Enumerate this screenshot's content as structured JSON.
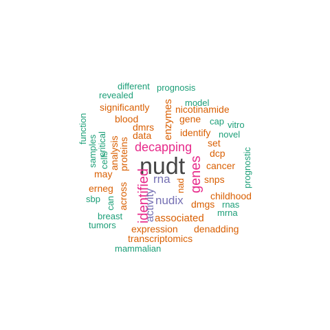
{
  "palette": {
    "teal": "#1b9e77",
    "orange": "#d95f02",
    "purple": "#7570b3",
    "magenta": "#e7298a",
    "gray": "#444444"
  },
  "words": [
    {
      "text": "nudt",
      "color": "gray",
      "rotated": false
    },
    {
      "text": "decapping",
      "color": "magenta",
      "rotated": false
    },
    {
      "text": "genes",
      "color": "magenta",
      "rotated": true
    },
    {
      "text": "identified",
      "color": "magenta",
      "rotated": true
    },
    {
      "text": "rna",
      "color": "purple",
      "rotated": false
    },
    {
      "text": "nudix",
      "color": "purple",
      "rotated": false
    },
    {
      "text": "activity",
      "color": "purple",
      "rotated": true
    },
    {
      "text": "associated",
      "color": "orange",
      "rotated": false
    },
    {
      "text": "expression",
      "color": "orange",
      "rotated": false
    },
    {
      "text": "denadding",
      "color": "orange",
      "rotated": false
    },
    {
      "text": "transcriptomics",
      "color": "orange",
      "rotated": false
    },
    {
      "text": "significantly",
      "color": "orange",
      "rotated": false
    },
    {
      "text": "nicotinamide",
      "color": "orange",
      "rotated": false
    },
    {
      "text": "blood",
      "color": "orange",
      "rotated": false
    },
    {
      "text": "dmrs",
      "color": "orange",
      "rotated": false
    },
    {
      "text": "data",
      "color": "orange",
      "rotated": false
    },
    {
      "text": "gene",
      "color": "orange",
      "rotated": false
    },
    {
      "text": "identify",
      "color": "orange",
      "rotated": false
    },
    {
      "text": "enzymes",
      "color": "orange",
      "rotated": true
    },
    {
      "text": "proteins",
      "color": "orange",
      "rotated": true
    },
    {
      "text": "analysis",
      "color": "orange",
      "rotated": true
    },
    {
      "text": "may",
      "color": "orange",
      "rotated": false
    },
    {
      "text": "erneg",
      "color": "orange",
      "rotated": false
    },
    {
      "text": "across",
      "color": "orange",
      "rotated": true
    },
    {
      "text": "dmgs",
      "color": "orange",
      "rotated": false
    },
    {
      "text": "snps",
      "color": "orange",
      "rotated": false
    },
    {
      "text": "cancer",
      "color": "orange",
      "rotated": false
    },
    {
      "text": "dcp",
      "color": "orange",
      "rotated": false
    },
    {
      "text": "set",
      "color": "orange",
      "rotated": false
    },
    {
      "text": "childhood",
      "color": "orange",
      "rotated": false
    },
    {
      "text": "nad",
      "color": "orange",
      "rotated": true
    },
    {
      "text": "different",
      "color": "teal",
      "rotated": false
    },
    {
      "text": "prognosis",
      "color": "teal",
      "rotated": false
    },
    {
      "text": "revealed",
      "color": "teal",
      "rotated": false
    },
    {
      "text": "model",
      "color": "teal",
      "rotated": false
    },
    {
      "text": "cap",
      "color": "teal",
      "rotated": false
    },
    {
      "text": "vitro",
      "color": "teal",
      "rotated": false
    },
    {
      "text": "novel",
      "color": "teal",
      "rotated": false
    },
    {
      "text": "prognostic",
      "color": "teal",
      "rotated": true
    },
    {
      "text": "function",
      "color": "teal",
      "rotated": true
    },
    {
      "text": "samples",
      "color": "teal",
      "rotated": true
    },
    {
      "text": "critical",
      "color": "teal",
      "rotated": true
    },
    {
      "text": "cells",
      "color": "teal",
      "rotated": true
    },
    {
      "text": "can",
      "color": "teal",
      "rotated": true
    },
    {
      "text": "sbp",
      "color": "teal",
      "rotated": false
    },
    {
      "text": "breast",
      "color": "teal",
      "rotated": false
    },
    {
      "text": "tumors",
      "color": "teal",
      "rotated": false
    },
    {
      "text": "mammalian",
      "color": "teal",
      "rotated": false
    },
    {
      "text": "rnas",
      "color": "teal",
      "rotated": false
    },
    {
      "text": "mrna",
      "color": "teal",
      "rotated": false
    }
  ]
}
